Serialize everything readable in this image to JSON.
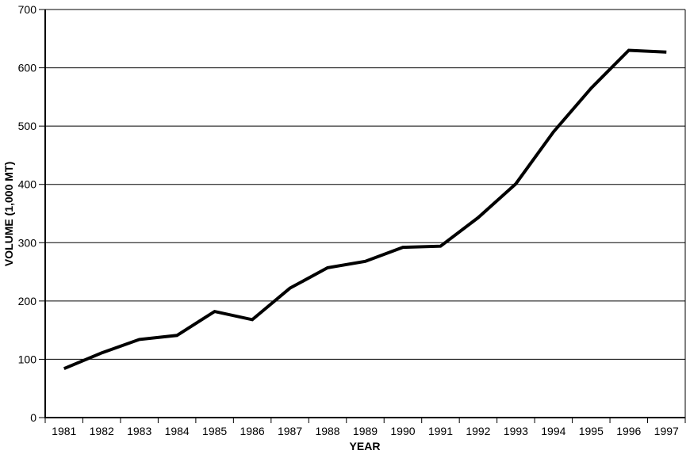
{
  "chart": {
    "background_color": "#ffffff",
    "line_color": "#000000",
    "grid_color": "#000000",
    "axis_color": "#000000",
    "text_color": "#000000"
  },
  "chart_data": {
    "type": "line",
    "title": "",
    "xlabel": "YEAR",
    "ylabel": "VOLUME (1,000 MT)",
    "categories": [
      "1981",
      "1982",
      "1983",
      "1984",
      "1985",
      "1986",
      "1987",
      "1988",
      "1989",
      "1990",
      "1991",
      "1992",
      "1993",
      "1994",
      "1995",
      "1996",
      "1997"
    ],
    "series": [
      {
        "name": "volume",
        "values": [
          84,
          111,
          134,
          141,
          182,
          168,
          222,
          257,
          268,
          292,
          294,
          343,
          401,
          490,
          565,
          630,
          627
        ]
      }
    ],
    "ylim": [
      0,
      700
    ],
    "ytick_interval": 100,
    "ytick_labels": [
      "0",
      "100",
      "200",
      "300",
      "400",
      "500",
      "600",
      "700"
    ],
    "grid": "horizontal",
    "legend": "none",
    "plot_border": true
  }
}
